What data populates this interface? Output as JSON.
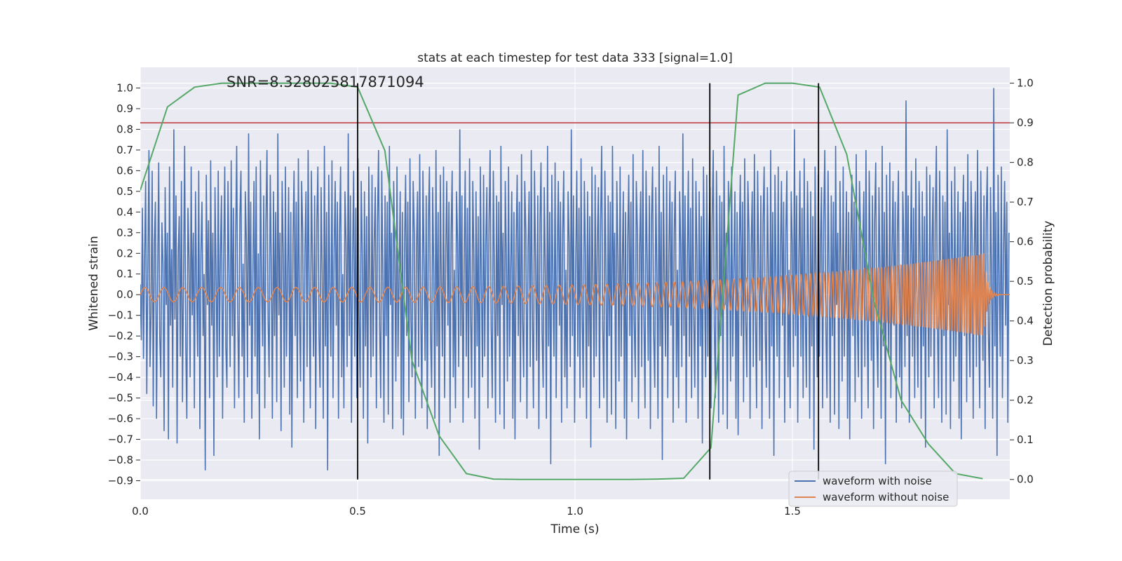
{
  "chart_data": {
    "type": "line",
    "title": "stats at each timestep for test data 333 [signal=1.0]",
    "xlabel": "Time (s)",
    "ylabel": "Whitened strain",
    "y2label": "Detection probability",
    "annotation": "SNR=8.328025817871094",
    "xlim": [
      0.0,
      2.0
    ],
    "ylim": [
      -0.99,
      1.1
    ],
    "y2lim": [
      -0.05,
      1.04
    ],
    "xticks": [
      "0.0",
      "0.5",
      "1.0",
      "1.5"
    ],
    "xtick_values": [
      0.0,
      0.5,
      1.0,
      1.5
    ],
    "yticks": [
      "1.0",
      "0.9",
      "0.8",
      "0.7",
      "0.6",
      "0.5",
      "0.4",
      "0.3",
      "0.2",
      "0.1",
      "0.0",
      "−0.1",
      "−0.2",
      "−0.3",
      "−0.4",
      "−0.5",
      "−0.6",
      "−0.7",
      "−0.8",
      "−0.9"
    ],
    "ytick_values": [
      1.0,
      0.9,
      0.8,
      0.7,
      0.6,
      0.5,
      0.4,
      0.3,
      0.2,
      0.1,
      0.0,
      -0.1,
      -0.2,
      -0.3,
      -0.4,
      -0.5,
      -0.6,
      -0.7,
      -0.8,
      -0.9
    ],
    "y2ticks": [
      "1.0",
      "0.9",
      "0.8",
      "0.7",
      "0.6",
      "0.5",
      "0.4",
      "0.3",
      "0.2",
      "0.1",
      "0.0"
    ],
    "y2tick_values": [
      1.0,
      0.9,
      0.8,
      0.7,
      0.6,
      0.5,
      0.4,
      0.3,
      0.2,
      0.1,
      0.0
    ],
    "grid": true,
    "legend_placement": "lower-right",
    "threshold_probability": 0.9,
    "vertical_lines": [
      0.5,
      1.31,
      1.56
    ],
    "series": [
      {
        "name": "waveform with noise",
        "color": "#4c72b0",
        "x_range": [
          0.0,
          1.998
        ],
        "values": [
          0.05,
          -0.22,
          0.42,
          -0.31,
          0.18,
          0.55,
          -0.48,
          0.12,
          0.7,
          -0.35,
          -0.1,
          0.6,
          -0.54,
          0.25,
          0.45,
          -0.6,
          0.05,
          0.64,
          -0.2,
          -0.4,
          0.35,
          0.15,
          -0.66,
          0.52,
          -0.05,
          0.3,
          -0.7,
          0.62,
          -0.15,
          0.22,
          -0.45,
          0.8,
          -0.12,
          0.48,
          -0.72,
          0.2,
          0.38,
          -0.3,
          0.55,
          -0.52,
          0.1,
          0.72,
          -0.25,
          -0.6,
          0.42,
          0.18,
          -0.4,
          0.62,
          -0.1,
          0.3,
          -0.55,
          0.5,
          0.05,
          -0.3,
          0.6,
          -0.65,
          0.2,
          0.45,
          -0.2,
          0.1,
          -0.85,
          0.58,
          -0.05,
          0.36,
          -0.5,
          0.65,
          -0.15,
          0.3,
          -0.78,
          0.52,
          0.1,
          -0.4,
          0.6,
          -0.3,
          0.2,
          0.48,
          -0.6,
          0.15,
          0.62,
          -0.25,
          -0.45,
          0.55,
          0.08,
          -0.35,
          0.65,
          -0.2,
          0.42,
          -0.55,
          0.22,
          0.72,
          -0.1,
          -0.5,
          0.38,
          0.6,
          -0.3,
          0.15,
          -0.62,
          0.5,
          0.25,
          -0.4,
          0.78,
          -0.15,
          0.45,
          -0.6,
          0.1,
          0.55,
          -0.3,
          0.62,
          -0.48,
          0.2,
          -0.7,
          0.65,
          0.05,
          -0.25,
          0.48,
          -0.55,
          0.35,
          0.7,
          -0.12,
          -0.4,
          0.58,
          0.15,
          -0.6,
          0.5,
          -0.2,
          0.4,
          -0.52,
          0.78,
          -0.1,
          0.3,
          -0.66,
          0.55,
          0.2,
          -0.45,
          0.62,
          -0.3,
          0.1,
          0.52,
          -0.58,
          0.4,
          -0.74,
          0.25,
          0.6,
          -0.2,
          0.45,
          -0.5,
          0.66,
          -0.1,
          -0.42,
          0.55,
          0.3,
          -0.62,
          0.2,
          0.5,
          -0.35,
          0.7,
          -0.05,
          -0.55,
          0.6,
          0.15,
          -0.3,
          0.48,
          -0.65,
          0.35,
          0.62,
          -0.2,
          -0.45,
          0.52,
          0.1,
          -0.6,
          0.72,
          -0.25,
          0.4,
          -0.85,
          0.58,
          0.05,
          -0.3,
          0.65,
          -0.5,
          0.2,
          0.55,
          -0.15,
          0.45,
          -0.6,
          0.3,
          0.62,
          -0.4,
          0.1,
          -0.55,
          0.5,
          0.25,
          -0.35,
          0.78,
          -0.2,
          0.48,
          -0.62,
          0.15,
          0.6,
          -0.3,
          0.42,
          -0.5,
          0.66,
          -0.1,
          -0.45,
          0.55,
          0.2,
          -0.6,
          0.5,
          -0.25,
          0.38,
          -0.72,
          0.62,
          0.05,
          -0.4,
          0.58,
          -0.3,
          0.25,
          0.52,
          -0.55,
          0.35,
          0.7,
          -0.15,
          -0.5,
          0.6,
          0.1,
          -0.62,
          0.48,
          -0.2,
          0.45,
          -0.58,
          0.72,
          -0.05,
          0.3,
          -0.65,
          0.55,
          0.18,
          -0.42,
          0.62,
          -0.3,
          0.12,
          0.5,
          -0.6,
          0.4,
          -0.68,
          0.25,
          0.58,
          -0.2,
          0.45,
          -0.52,
          0.66,
          -0.12,
          -0.4,
          0.55,
          0.3,
          -0.6,
          0.22,
          0.5,
          -0.35,
          0.68,
          -0.08,
          -0.55,
          0.6,
          0.15,
          -0.32,
          0.48,
          -0.65,
          0.35,
          0.62,
          -0.18,
          -0.45,
          0.52,
          0.1,
          -0.6,
          0.7,
          -0.25,
          0.4,
          -0.78,
          0.58,
          0.05,
          -0.3,
          0.62,
          -0.5,
          0.2,
          0.55,
          -0.15,
          0.45,
          -0.62,
          0.3,
          0.6,
          -0.4,
          0.12,
          -0.55,
          0.5,
          0.25,
          -0.35,
          0.8,
          -0.2,
          0.48,
          -0.62,
          0.15,
          0.6,
          -0.3,
          0.42,
          -0.5,
          0.66,
          -0.1,
          -0.45,
          0.55,
          0.2,
          -0.6,
          0.5,
          -0.25,
          0.38,
          -0.75,
          0.62,
          0.05,
          -0.4,
          0.58,
          -0.3,
          0.25,
          0.52,
          -0.55,
          0.35,
          0.7,
          -0.15,
          -0.5,
          0.6,
          0.1,
          -0.62,
          0.48,
          -0.2,
          0.45,
          -0.58,
          0.72,
          -0.05,
          0.3,
          -0.65,
          0.55,
          0.18,
          -0.42,
          0.62,
          -0.3,
          0.12,
          0.5,
          -0.6,
          0.4,
          -0.7,
          0.25,
          0.58,
          -0.2,
          0.45,
          -0.52,
          0.68,
          -0.12,
          -0.4,
          0.55,
          0.3,
          -0.6,
          0.22,
          0.5,
          -0.35,
          0.7,
          -0.08,
          -0.55,
          0.6,
          0.15,
          -0.32,
          0.48,
          -0.65,
          0.35,
          0.64,
          -0.18,
          -0.45,
          0.52,
          0.1,
          -0.6,
          0.72,
          -0.25,
          0.4,
          -0.82,
          0.58,
          0.05,
          -0.3,
          0.64,
          -0.5,
          0.2,
          0.55,
          -0.15,
          0.45,
          -0.62,
          0.3,
          0.6,
          -0.4,
          0.12,
          -0.55,
          0.5,
          0.25,
          -0.35,
          0.8,
          -0.2,
          0.48,
          -0.62,
          0.15,
          0.6,
          -0.3,
          0.42,
          -0.5,
          0.66,
          -0.1,
          -0.45,
          0.55,
          0.2,
          -0.6,
          0.5,
          -0.25,
          0.38,
          -0.74,
          0.62,
          0.05,
          -0.4,
          0.58,
          -0.3,
          0.25,
          0.52,
          -0.55,
          0.35,
          0.72,
          -0.15,
          -0.5,
          0.6,
          0.1,
          -0.62,
          0.48,
          -0.2,
          0.45,
          -0.58,
          0.72,
          -0.05,
          0.3,
          -0.65,
          0.55,
          0.18,
          -0.42,
          0.62,
          -0.3,
          0.12,
          0.5,
          -0.6,
          0.4,
          -0.7,
          0.25,
          0.58,
          -0.2,
          0.45,
          -0.52,
          0.68,
          -0.12,
          -0.4,
          0.55,
          0.3,
          -0.6,
          0.22,
          0.5,
          -0.35,
          0.7,
          -0.08,
          -0.55,
          0.6,
          0.15,
          -0.32,
          0.48,
          -0.65,
          0.35,
          0.62,
          -0.18,
          -0.45,
          0.52,
          0.1,
          -0.6,
          0.72,
          -0.25,
          0.4,
          -0.8,
          0.58,
          0.05,
          -0.3,
          0.62,
          -0.5,
          0.2,
          0.55,
          -0.15,
          0.45,
          -0.62,
          0.3,
          0.6,
          -0.4,
          0.12,
          -0.55,
          0.5,
          0.25,
          -0.35,
          0.78,
          -0.2,
          0.48,
          -0.62,
          0.15,
          0.6,
          -0.3,
          0.42,
          -0.5,
          0.66,
          -0.1,
          -0.45,
          0.55,
          0.2,
          -0.6,
          0.5,
          -0.25,
          0.38,
          -0.72,
          0.62,
          0.05,
          -0.4,
          0.58,
          -0.3,
          0.25,
          0.52,
          -0.55,
          0.35,
          0.7,
          -0.15,
          -0.5,
          0.6,
          0.1,
          -0.62,
          0.48,
          -0.2,
          0.45,
          -0.58,
          0.72,
          -0.05,
          0.3,
          -0.65,
          0.55,
          0.18,
          -0.42,
          0.62,
          -0.3,
          0.12,
          0.5,
          -0.6,
          0.4,
          -0.68,
          0.25,
          0.58,
          -0.2,
          0.45,
          -0.52,
          0.66,
          -0.12,
          -0.4,
          0.55,
          0.3,
          -0.6,
          0.22,
          0.5,
          -0.35,
          0.68,
          -0.08,
          -0.55,
          0.6,
          0.15,
          -0.32,
          0.48,
          -0.65,
          0.35,
          0.62,
          -0.18,
          -0.45,
          0.52,
          0.1,
          -0.6,
          0.7,
          -0.25,
          0.4,
          -0.78,
          0.58,
          0.05,
          -0.3,
          0.62,
          -0.5,
          0.2,
          0.55,
          -0.15,
          0.45,
          -0.62,
          0.3,
          0.6,
          -0.4,
          0.12,
          -0.55,
          0.5,
          0.25,
          -0.35,
          0.8,
          -0.2,
          0.48,
          -0.62,
          0.15,
          0.6,
          -0.3,
          0.42,
          -0.5,
          0.66,
          -0.1,
          -0.45,
          0.55,
          0.2,
          -0.6,
          0.5,
          -0.25,
          0.38,
          -0.75,
          0.62,
          0.05,
          -0.4,
          0.58,
          -0.3,
          0.25,
          0.52,
          -0.55,
          0.35,
          0.7,
          -0.15,
          -0.5,
          0.6,
          0.1,
          -0.62,
          0.48,
          -0.2,
          0.45,
          -0.58,
          0.72,
          -0.05,
          0.3,
          -0.65,
          0.55,
          0.18,
          -0.42,
          0.62,
          -0.3,
          0.12,
          0.5,
          -0.6,
          0.4,
          -0.7,
          0.25,
          0.58,
          -0.2,
          0.45,
          -0.52,
          0.68,
          -0.12,
          -0.4,
          0.55,
          0.3,
          -0.6,
          0.22,
          0.5,
          -0.35,
          0.7,
          -0.08,
          -0.55,
          0.6,
          0.15,
          -0.32,
          0.48,
          -0.65,
          0.35,
          0.64,
          -0.18,
          -0.45,
          0.52,
          0.1,
          -0.6,
          0.72,
          -0.25,
          0.4,
          -0.82,
          0.58,
          0.05,
          -0.3,
          0.64,
          -0.5,
          0.2,
          0.55,
          -0.15,
          0.45,
          -0.62,
          0.3,
          0.6,
          -0.4,
          0.12,
          -0.55,
          0.5,
          0.25,
          -0.35,
          0.94,
          -0.2,
          0.48,
          -0.62,
          0.15,
          0.6,
          -0.3,
          0.42,
          -0.5,
          0.66,
          -0.1,
          -0.45,
          0.55,
          0.2,
          -0.6,
          0.5,
          -0.25,
          0.38,
          -0.74,
          0.62,
          0.05,
          -0.4,
          0.58,
          -0.3,
          0.25,
          0.52,
          -0.55,
          0.35,
          0.72,
          -0.15,
          -0.5,
          0.6,
          0.1,
          -0.62,
          0.48,
          -0.2,
          0.45,
          -0.58,
          0.8,
          -0.05,
          0.3,
          -0.65,
          0.55,
          0.18,
          -0.42,
          0.62,
          -0.3,
          0.12,
          0.5,
          -0.6,
          0.4,
          -0.7,
          0.25,
          0.58,
          -0.2,
          0.45,
          -0.52,
          0.68,
          -0.12,
          -0.4,
          0.55,
          0.3,
          -0.6,
          0.22,
          0.5,
          -0.35,
          0.7,
          -0.08,
          -0.55,
          0.6,
          0.15,
          -0.32,
          0.48,
          -0.65,
          0.35,
          0.62,
          -0.18,
          -0.45,
          0.52,
          0.1,
          -0.6,
          1.0,
          -0.25,
          0.4,
          -0.78,
          0.58,
          0.05,
          -0.3,
          0.62,
          -0.5,
          0.2,
          0.55,
          -0.15,
          0.45,
          -0.62,
          0.3
        ]
      },
      {
        "name": "waveform without noise",
        "color": "#dd8452",
        "x_range": [
          0.0,
          1.95
        ],
        "chirp": {
          "f0_hz": 23,
          "f_end_hz": 200,
          "amp0": 0.035,
          "amp_end": 0.2,
          "merger_time": 1.94,
          "ringdown_end": 1.98
        }
      },
      {
        "name": "",
        "axis": "right",
        "color": "#55a868",
        "x": [
          0.0,
          0.0625,
          0.125,
          0.1875,
          0.25,
          0.3125,
          0.375,
          0.4375,
          0.5,
          0.5625,
          0.625,
          0.6875,
          0.75,
          0.8125,
          0.875,
          0.9375,
          1.0,
          1.0625,
          1.125,
          1.1875,
          1.25,
          1.3125,
          1.375,
          1.4375,
          1.5,
          1.5625,
          1.625,
          1.6875,
          1.75,
          1.8125,
          1.875,
          1.9375
        ],
        "values": [
          0.73,
          0.94,
          0.99,
          1.0,
          1.0,
          1.0,
          1.0,
          1.0,
          0.99,
          0.83,
          0.3,
          0.11,
          0.015,
          0.001,
          0.0,
          0.0,
          0.0,
          0.0,
          0.0,
          0.001,
          0.003,
          0.08,
          0.97,
          1.0,
          1.0,
          0.99,
          0.82,
          0.45,
          0.2,
          0.09,
          0.015,
          0.002
        ]
      }
    ],
    "colors": {
      "background": "#eaeaf2",
      "grid": "#ffffff",
      "threshold": "#c44e52",
      "vline": "#000000"
    }
  }
}
